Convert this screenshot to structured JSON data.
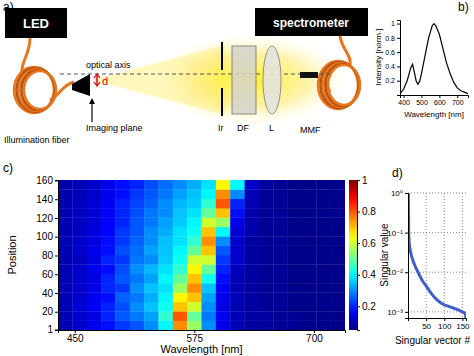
{
  "diagram": {
    "title": "a)",
    "labels": {
      "led": "LED",
      "spectrometer": "spectrometer",
      "optical_axis": "optical axis",
      "d": "d",
      "illumination_fiber": "Illumination fiber",
      "imaging_plane": "Imaging plane",
      "iris": "Ir",
      "diffuser": "DF",
      "lens": "L",
      "mmf": "MMF"
    }
  },
  "chart_data": [
    {
      "type": "line",
      "title": "b)",
      "x_label": "Wavelength [nm]",
      "y_label": "Intensity [norm.]",
      "x": [
        380,
        400,
        420,
        440,
        450,
        460,
        470,
        480,
        490,
        500,
        520,
        540,
        560,
        570,
        580,
        600,
        620,
        640,
        660,
        680,
        700,
        720,
        740,
        760
      ],
      "values": [
        0.02,
        0.08,
        0.2,
        0.38,
        0.43,
        0.32,
        0.2,
        0.15,
        0.19,
        0.3,
        0.55,
        0.8,
        0.97,
        1.0,
        0.97,
        0.85,
        0.65,
        0.45,
        0.3,
        0.18,
        0.1,
        0.06,
        0.04,
        0.02
      ],
      "color": "#000000",
      "xlim": [
        380,
        760
      ],
      "ylim": [
        0,
        1.05
      ],
      "xticks": [
        400,
        500,
        600,
        700
      ],
      "yticks": [
        0.2,
        0.4,
        0.6,
        0.8,
        1
      ]
    },
    {
      "type": "heatmap",
      "title": "c)",
      "x_label": "Wavelength [nm]",
      "y_label": "Position",
      "x": [
        440,
        455,
        470,
        485,
        500,
        515,
        530,
        545,
        560,
        575,
        590,
        605,
        620,
        635,
        650,
        665,
        680,
        695,
        710,
        725
      ],
      "y": [
        5.5,
        15.5,
        25.5,
        35.5,
        45.5,
        55.5,
        65.5,
        75.5,
        85.5,
        95.5,
        105.5,
        115.5,
        125.5,
        135.5,
        145.5,
        155.5
      ],
      "values": [
        [
          0.1,
          0.12,
          0.15,
          0.18,
          0.22,
          0.25,
          0.3,
          0.4,
          0.75,
          0.55,
          0.3,
          0.15,
          0.1,
          0.08,
          0.08,
          0.07,
          0.07,
          0.06,
          0.06,
          0.06
        ],
        [
          0.1,
          0.12,
          0.14,
          0.2,
          0.25,
          0.28,
          0.32,
          0.45,
          0.8,
          0.5,
          0.28,
          0.15,
          0.1,
          0.08,
          0.08,
          0.07,
          0.07,
          0.06,
          0.06,
          0.06
        ],
        [
          0.1,
          0.13,
          0.16,
          0.2,
          0.24,
          0.3,
          0.35,
          0.42,
          0.7,
          0.6,
          0.3,
          0.14,
          0.1,
          0.08,
          0.07,
          0.07,
          0.06,
          0.06,
          0.06,
          0.06
        ],
        [
          0.1,
          0.12,
          0.15,
          0.18,
          0.26,
          0.28,
          0.33,
          0.4,
          0.65,
          0.7,
          0.32,
          0.15,
          0.1,
          0.08,
          0.07,
          0.07,
          0.06,
          0.06,
          0.06,
          0.06
        ],
        [
          0.1,
          0.12,
          0.15,
          0.2,
          0.22,
          0.3,
          0.35,
          0.38,
          0.55,
          0.75,
          0.35,
          0.16,
          0.1,
          0.08,
          0.07,
          0.07,
          0.06,
          0.06,
          0.06,
          0.06
        ],
        [
          0.1,
          0.12,
          0.14,
          0.2,
          0.25,
          0.28,
          0.32,
          0.4,
          0.5,
          0.7,
          0.42,
          0.18,
          0.1,
          0.08,
          0.07,
          0.07,
          0.06,
          0.06,
          0.06,
          0.06
        ],
        [
          0.1,
          0.12,
          0.15,
          0.18,
          0.24,
          0.3,
          0.34,
          0.38,
          0.45,
          0.65,
          0.5,
          0.2,
          0.11,
          0.08,
          0.07,
          0.07,
          0.06,
          0.06,
          0.06,
          0.06
        ],
        [
          0.1,
          0.11,
          0.14,
          0.2,
          0.22,
          0.28,
          0.3,
          0.36,
          0.42,
          0.6,
          0.6,
          0.22,
          0.12,
          0.08,
          0.07,
          0.07,
          0.06,
          0.06,
          0.06,
          0.06
        ],
        [
          0.1,
          0.12,
          0.15,
          0.18,
          0.24,
          0.27,
          0.32,
          0.35,
          0.4,
          0.5,
          0.7,
          0.25,
          0.12,
          0.08,
          0.07,
          0.07,
          0.06,
          0.06,
          0.06,
          0.06
        ],
        [
          0.1,
          0.12,
          0.14,
          0.18,
          0.22,
          0.26,
          0.3,
          0.35,
          0.38,
          0.45,
          0.75,
          0.3,
          0.12,
          0.08,
          0.07,
          0.07,
          0.06,
          0.06,
          0.06,
          0.06
        ],
        [
          0.1,
          0.11,
          0.14,
          0.17,
          0.22,
          0.25,
          0.3,
          0.33,
          0.38,
          0.42,
          0.7,
          0.4,
          0.13,
          0.09,
          0.07,
          0.07,
          0.06,
          0.06,
          0.06,
          0.06
        ],
        [
          0.1,
          0.11,
          0.13,
          0.17,
          0.2,
          0.25,
          0.28,
          0.32,
          0.36,
          0.4,
          0.6,
          0.55,
          0.15,
          0.09,
          0.07,
          0.07,
          0.06,
          0.06,
          0.06,
          0.06
        ],
        [
          0.1,
          0.11,
          0.13,
          0.16,
          0.2,
          0.24,
          0.28,
          0.3,
          0.35,
          0.38,
          0.5,
          0.7,
          0.18,
          0.09,
          0.07,
          0.07,
          0.06,
          0.06,
          0.06,
          0.06
        ],
        [
          0.1,
          0.11,
          0.13,
          0.16,
          0.2,
          0.23,
          0.26,
          0.3,
          0.34,
          0.36,
          0.45,
          0.8,
          0.2,
          0.1,
          0.07,
          0.07,
          0.06,
          0.06,
          0.06,
          0.06
        ],
        [
          0.09,
          0.1,
          0.12,
          0.15,
          0.18,
          0.22,
          0.25,
          0.28,
          0.32,
          0.35,
          0.4,
          0.75,
          0.3,
          0.1,
          0.07,
          0.07,
          0.06,
          0.06,
          0.06,
          0.06
        ],
        [
          0.09,
          0.1,
          0.12,
          0.15,
          0.18,
          0.2,
          0.24,
          0.27,
          0.3,
          0.33,
          0.38,
          0.65,
          0.4,
          0.12,
          0.08,
          0.07,
          0.06,
          0.06,
          0.06,
          0.06
        ]
      ],
      "xlim": [
        432.5,
        732.5
      ],
      "ylim": [
        0.5,
        160.5
      ],
      "xticks": [
        450,
        575,
        700
      ],
      "yticks": [
        1,
        20,
        40,
        60,
        80,
        100,
        120,
        140,
        160
      ],
      "colorbar": {
        "range": [
          0.05,
          1
        ],
        "ticks": [
          0.2,
          0.4,
          0.6,
          0.8,
          1
        ]
      }
    },
    {
      "type": "line",
      "title": "d)",
      "x_label": "Singular vector #",
      "y_label": "Singular value",
      "x": [
        1,
        2,
        3,
        5,
        8,
        10,
        15,
        20,
        30,
        40,
        50,
        60,
        70,
        80,
        90,
        100,
        110,
        120,
        130,
        140,
        150,
        155,
        158,
        160
      ],
      "values": [
        1,
        0.1,
        0.06,
        0.04,
        0.03,
        0.025,
        0.018,
        0.014,
        0.009,
        0.006,
        0.0045,
        0.0033,
        0.0025,
        0.002,
        0.0017,
        0.0015,
        0.0014,
        0.0013,
        0.0012,
        0.0011,
        0.001,
        0.00095,
        0.0009,
        0.0007
      ],
      "color": "#3f5fcf",
      "log": "y",
      "grid": true,
      "xlim": [
        0,
        160
      ],
      "ylim": [
        0.0007,
        1
      ],
      "xticks": [
        50,
        100,
        150
      ],
      "yticks": [
        {
          "value": 1,
          "label": "10⁰"
        },
        {
          "value": 0.1,
          "label": "10⁻¹"
        },
        {
          "value": 0.01,
          "label": "10⁻²"
        },
        {
          "value": 0.001,
          "label": "10⁻³"
        }
      ]
    }
  ]
}
